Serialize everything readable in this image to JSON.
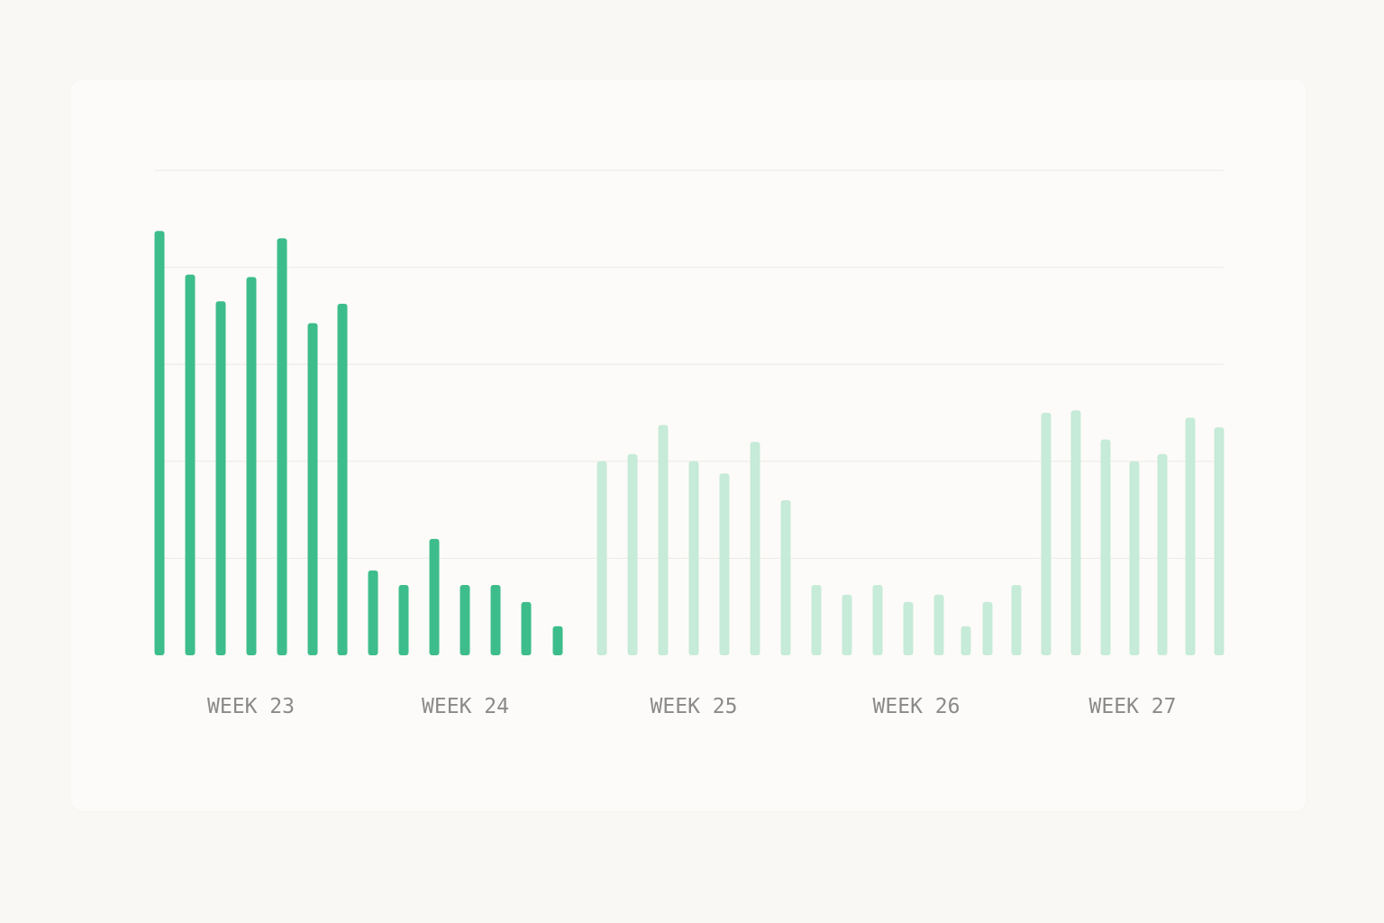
{
  "colors": {
    "page_bg": "#faf8f5",
    "card_bg": "#fdfbf9",
    "grid": "#eceae6",
    "bar_active": "#3dbd8b",
    "bar_muted": "#c6ebd8",
    "tick_label": "#8a8a8a"
  },
  "chart_data": {
    "type": "bar",
    "title": "",
    "xlabel": "",
    "ylabel": "",
    "y_axis_labels_shown": false,
    "ylim": [
      0,
      100
    ],
    "grid": "horizontal",
    "gridlines": [
      0,
      20,
      40,
      60,
      80,
      100
    ],
    "legend": "none",
    "weeks": [
      {
        "label": "WEEK 23",
        "state": "active",
        "values": [
          87.5,
          78.5,
          73,
          78,
          86,
          68.5,
          72.5
        ]
      },
      {
        "label": "WEEK 24",
        "state": "active",
        "values": [
          17.5,
          14.5,
          24,
          14.5,
          14.5,
          11,
          6
        ]
      },
      {
        "label": "WEEK 25",
        "state": "muted",
        "values": [
          40,
          41.5,
          47.5,
          40,
          37.5,
          44,
          32
        ]
      },
      {
        "label": "WEEK 26",
        "state": "muted",
        "values": [
          14.5,
          12.5,
          14.5,
          11,
          12.5,
          6,
          11,
          14.5
        ]
      },
      {
        "label": "WEEK 27",
        "state": "muted",
        "values": [
          50,
          50.5,
          44.5,
          40,
          41.5,
          49,
          47
        ]
      }
    ]
  }
}
